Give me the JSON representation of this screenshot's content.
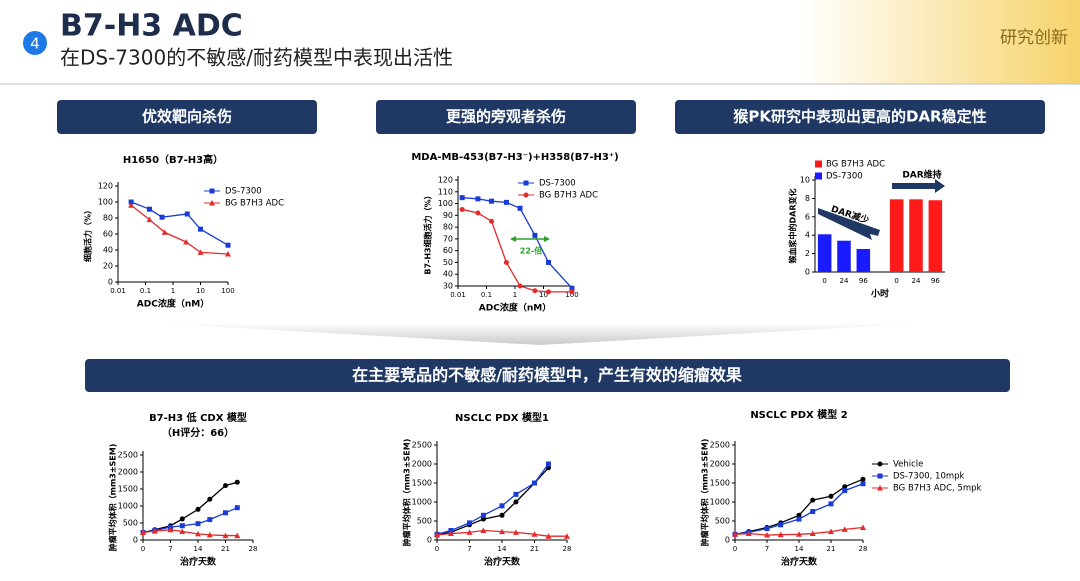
{
  "header": {
    "badge": "4",
    "title": "B7-H3 ADC",
    "subtitle": "在DS-7300的不敏感/耐药模型中表现出活性",
    "tag": "研究创新"
  },
  "sections": [
    "优效靶向杀伤",
    "更强的旁观者杀伤",
    "猴PK研究中表现出更高的DAR稳定性"
  ],
  "banner": "在主要竞品的不敏感/耐药模型中，产生有效的缩瘤效果",
  "chart_data": [
    {
      "type": "line",
      "title": "H1650（B7-H3高）",
      "x_label": "ADC浓度（nM）",
      "y_label": "细胞活力（%）",
      "xscale": "log",
      "xlim": [
        0.01,
        100
      ],
      "xticks": [
        0.01,
        0.1,
        1,
        10,
        100
      ],
      "ylim": [
        0,
        120
      ],
      "yticks": [
        0,
        20,
        40,
        60,
        80,
        100,
        120
      ],
      "legend": "upper right",
      "series": [
        {
          "name": "DS-7300",
          "color": "#1a3cd6",
          "marker": "square",
          "x": [
            0.03,
            0.14,
            0.4,
            3.3,
            10,
            100
          ],
          "values": [
            100,
            91,
            81,
            85,
            66,
            46
          ]
        },
        {
          "name": "BG B7H3 ADC",
          "color": "#e32b2b",
          "marker": "triangle",
          "x": [
            0.03,
            0.14,
            0.5,
            3,
            10,
            100
          ],
          "values": [
            96,
            78,
            62,
            50,
            37,
            35
          ]
        }
      ]
    },
    {
      "type": "line",
      "title": "MDA-MB-453(B7-H3⁻)+H358(B7-H3⁺)",
      "x_label": "ADC浓度（nM）",
      "y_label": "B7-H3细胞活力（%）",
      "xscale": "log",
      "xlim": [
        0.01,
        100
      ],
      "xticks": [
        0.01,
        0.1,
        1,
        10,
        100
      ],
      "ylim": [
        30,
        120
      ],
      "yticks": [
        30,
        40,
        50,
        60,
        70,
        80,
        90,
        100,
        110,
        120
      ],
      "legend": "upper right",
      "annotations": [
        "22-倍"
      ],
      "series": [
        {
          "name": "DS-7300",
          "color": "#1a3cd6",
          "marker": "square",
          "x": [
            0.014,
            0.05,
            0.15,
            0.5,
            1.5,
            5,
            15,
            100
          ],
          "values": [
            105,
            104,
            102,
            101,
            96,
            73,
            50,
            28
          ]
        },
        {
          "name": "BG B7H3 ADC",
          "color": "#e32b2b",
          "marker": "circle",
          "x": [
            0.014,
            0.05,
            0.15,
            0.5,
            1.5,
            5,
            15,
            100
          ],
          "values": [
            95,
            92,
            85,
            50,
            30,
            26,
            25,
            25
          ]
        }
      ]
    },
    {
      "type": "bar",
      "x_label": "小时",
      "y_label": "猴血浆中的DAR变化",
      "categories": [
        "0",
        "24",
        "96",
        "0",
        "24",
        "96"
      ],
      "ylim": [
        0,
        10
      ],
      "yticks": [
        0,
        2,
        4,
        6,
        8,
        10
      ],
      "legend": "upper left",
      "annotations": [
        "DAR减少",
        "DAR维持"
      ],
      "series": [
        {
          "name": "BG B7H3 ADC",
          "color": "#ff1a1a",
          "values": [
            null,
            null,
            null,
            7.9,
            7.9,
            7.8
          ]
        },
        {
          "name": "DS-7300",
          "color": "#1a1aff",
          "values": [
            4.1,
            3.4,
            2.5,
            null,
            null,
            null
          ]
        }
      ]
    },
    {
      "type": "line",
      "title": "B7-H3 低 CDX 模型",
      "subtitle": "（H评分：66）",
      "x_label": "治疗天数",
      "y_label": "肿瘤平均体积（mm3±SEM)",
      "xlim": [
        0,
        28
      ],
      "xticks": [
        0,
        7,
        14,
        21,
        28
      ],
      "ylim": [
        0,
        2500
      ],
      "yticks": [
        0,
        500,
        1000,
        1500,
        2000,
        2500
      ],
      "series": [
        {
          "color": "#000000",
          "marker": "circle",
          "x": [
            0,
            3,
            7,
            10,
            14,
            17,
            21,
            24
          ],
          "values": [
            220,
            300,
            420,
            620,
            900,
            1200,
            1600,
            1700
          ]
        },
        {
          "color": "#1a3cd6",
          "marker": "square",
          "x": [
            0,
            3,
            7,
            10,
            14,
            17,
            21,
            24
          ],
          "values": [
            220,
            280,
            380,
            420,
            480,
            600,
            800,
            950
          ]
        },
        {
          "color": "#e32b2b",
          "marker": "triangle",
          "x": [
            0,
            3,
            7,
            10,
            14,
            17,
            21,
            24
          ],
          "values": [
            220,
            260,
            300,
            250,
            180,
            150,
            130,
            130
          ]
        }
      ]
    },
    {
      "type": "line",
      "title": "NSCLC PDX 模型1",
      "x_label": "治疗天数",
      "y_label": "肿瘤平均体积（mm3±SEM)",
      "xlim": [
        0,
        28
      ],
      "xticks": [
        0,
        7,
        14,
        21,
        28
      ],
      "ylim": [
        0,
        2500
      ],
      "yticks": [
        0,
        500,
        1000,
        1500,
        2000,
        2500
      ],
      "series": [
        {
          "color": "#000000",
          "marker": "circle",
          "x": [
            0,
            3,
            7,
            10,
            14,
            17,
            21,
            24
          ],
          "values": [
            150,
            200,
            400,
            550,
            650,
            1000,
            1500,
            1900
          ]
        },
        {
          "color": "#1a3cd6",
          "marker": "square",
          "x": [
            0,
            3,
            7,
            10,
            14,
            17,
            21,
            24
          ],
          "values": [
            150,
            250,
            450,
            650,
            900,
            1200,
            1500,
            2000
          ]
        },
        {
          "color": "#e32b2b",
          "marker": "triangle",
          "x": [
            0,
            3,
            7,
            10,
            14,
            17,
            21,
            24,
            28
          ],
          "values": [
            130,
            170,
            200,
            250,
            220,
            200,
            150,
            100,
            100
          ]
        }
      ]
    },
    {
      "type": "line",
      "title": "NSCLC PDX 模型 2",
      "x_label": "治疗天数",
      "y_label": "肿瘤平均体积（mm3±SEM)",
      "xlim": [
        0,
        28
      ],
      "xticks": [
        0,
        7,
        14,
        21,
        28
      ],
      "ylim": [
        0,
        2500
      ],
      "yticks": [
        0,
        500,
        1000,
        1500,
        2000,
        2500
      ],
      "legend": "upper right",
      "series": [
        {
          "name": "Vehicle",
          "color": "#000000",
          "marker": "circle",
          "x": [
            0,
            3,
            7,
            10,
            14,
            17,
            21,
            24,
            28
          ],
          "values": [
            150,
            220,
            330,
            450,
            650,
            1050,
            1150,
            1400,
            1600
          ]
        },
        {
          "name": "DS-7300, 10mpk",
          "color": "#1a3cd6",
          "marker": "square",
          "x": [
            0,
            3,
            7,
            10,
            14,
            17,
            21,
            24,
            28
          ],
          "values": [
            150,
            200,
            300,
            400,
            550,
            750,
            950,
            1300,
            1480
          ]
        },
        {
          "name": "BG B7H3 ADC, 5mpk",
          "color": "#e32b2b",
          "marker": "triangle",
          "x": [
            0,
            3,
            7,
            10,
            14,
            17,
            21,
            24,
            28
          ],
          "values": [
            150,
            170,
            130,
            140,
            150,
            170,
            220,
            280,
            330
          ]
        }
      ]
    }
  ]
}
